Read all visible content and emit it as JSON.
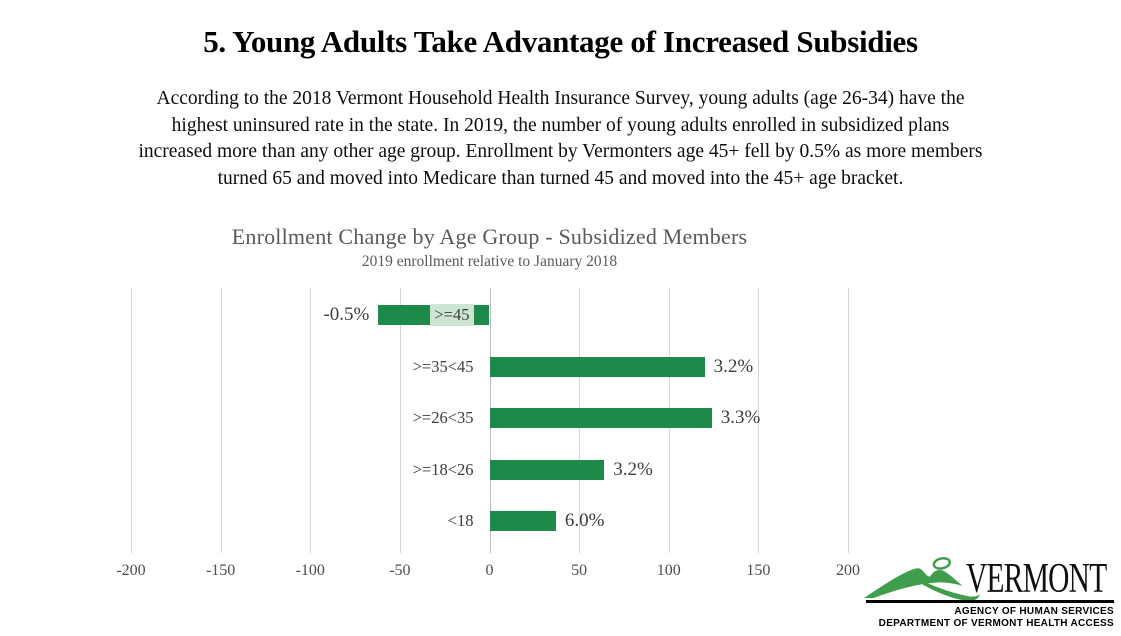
{
  "title": "5. Young Adults Take Advantage of Increased Subsidies",
  "intro_lines": [
    "According to the 2018 Vermont Household Health Insurance Survey, young adults (age 26-34) have the",
    "highest uninsured rate in the state. In 2019, the number of young adults enrolled in subsidized plans",
    "increased more than any other age group. Enrollment by Vermonters age 45+ fell by 0.5% as more members",
    "turned 65 and moved into Medicare than turned 45 and moved into the 45+ age bracket."
  ],
  "chart_data": {
    "type": "bar",
    "orientation": "horizontal",
    "title": "Enrollment Change by Age Group - Subsidized Members",
    "subtitle": "2019 enrollment relative to January 2018",
    "categories": [
      ">=45",
      ">=35<45",
      ">=26<35",
      ">=18<26",
      "<18"
    ],
    "values": [
      -62,
      120,
      124,
      64,
      37
    ],
    "value_labels": [
      "-0.5%",
      "3.2%",
      "3.3%",
      "3.2%",
      "6.0%"
    ],
    "xlim": [
      -200,
      200
    ],
    "xticks": [
      -200,
      -150,
      -100,
      -50,
      0,
      50,
      100,
      150,
      200
    ],
    "grid": true,
    "legend": "none",
    "bar_color": "#1e8a4a",
    "category_highlight_color": "#cde5d3"
  },
  "logo": {
    "wordmark": "VERMONT",
    "line1": "AGENCY OF HUMAN SERVICES",
    "line2": "DEPARTMENT OF VERMONT HEALTH ACCESS",
    "mountain_color": "#3f9e4d"
  }
}
